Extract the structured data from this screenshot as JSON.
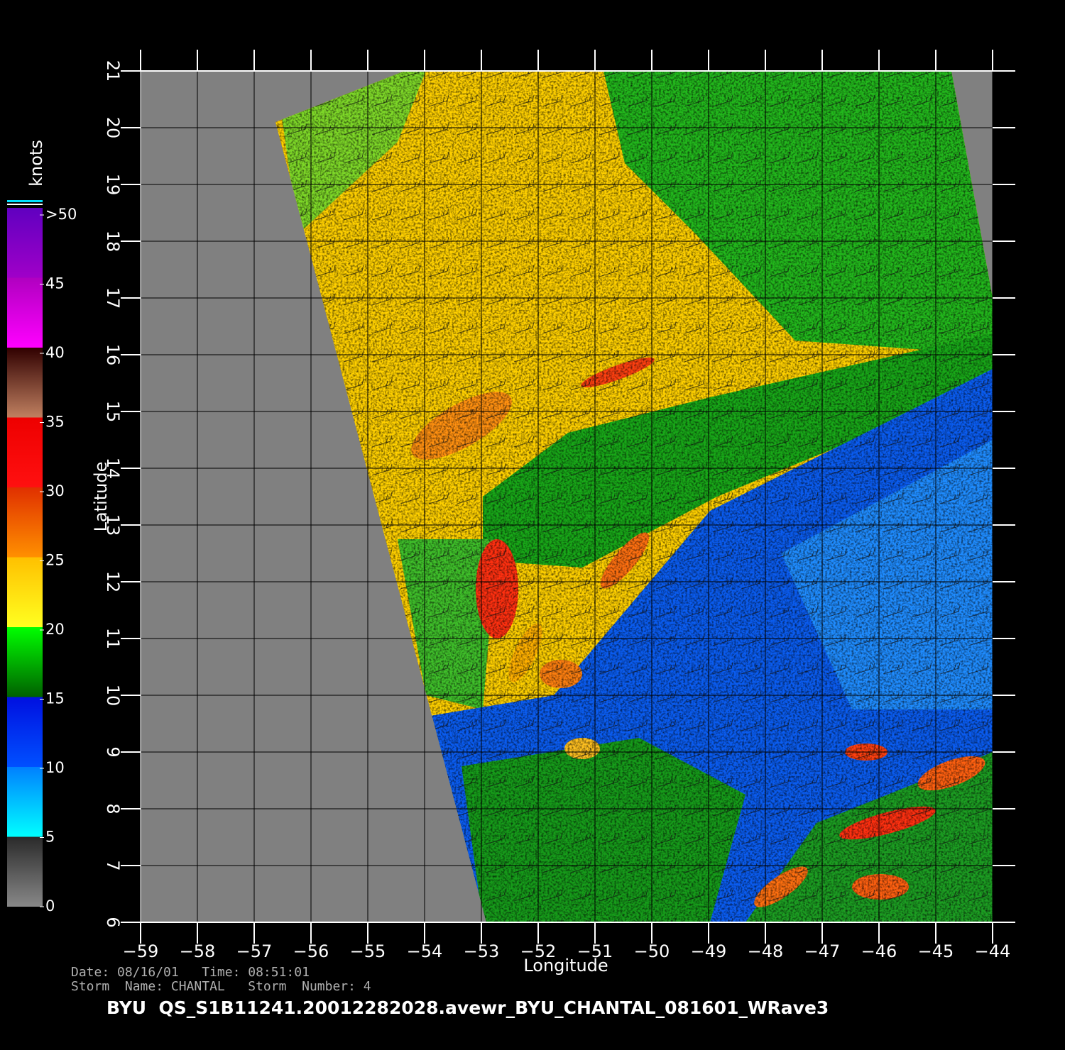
{
  "map": {
    "x_axis": {
      "label": "Longitude",
      "lim": [
        -59,
        -44
      ],
      "ticks": [
        {
          "value": -59,
          "label": "−59"
        },
        {
          "value": -58,
          "label": "−58"
        },
        {
          "value": -57,
          "label": "−57"
        },
        {
          "value": -56,
          "label": "−56"
        },
        {
          "value": -55,
          "label": "−55"
        },
        {
          "value": -54,
          "label": "−54"
        },
        {
          "value": -53,
          "label": "−53"
        },
        {
          "value": -52,
          "label": "−52"
        },
        {
          "value": -51,
          "label": "−51"
        },
        {
          "value": -50,
          "label": "−50"
        },
        {
          "value": -49,
          "label": "−49"
        },
        {
          "value": -48,
          "label": "−48"
        },
        {
          "value": -47,
          "label": "−47"
        },
        {
          "value": -46,
          "label": "−46"
        },
        {
          "value": -45,
          "label": "−45"
        },
        {
          "value": -44,
          "label": "−44"
        }
      ]
    },
    "y_axis": {
      "label": "Latitude",
      "lim": [
        6,
        21
      ],
      "ticks": [
        6,
        7,
        8,
        9,
        10,
        11,
        12,
        13,
        14,
        15,
        16,
        17,
        18,
        19,
        20,
        21
      ]
    },
    "colorbar": {
      "label": "knots",
      "lim": [
        0,
        50
      ],
      "ticks": [
        0,
        5,
        10,
        15,
        20,
        25,
        30,
        35,
        40,
        45,
        {
          "value": 50,
          "label": ">50"
        }
      ]
    },
    "footer": {
      "date_line": "Date: 08/16/01   Time: 08:51:01",
      "storm_line": "Storm  Name: CHANTAL   Storm  Number: 4",
      "title": "BYU  QS_S1B11241.20012282028.avewr_BYU_CHANTAL_081601_WRave3"
    }
  }
}
